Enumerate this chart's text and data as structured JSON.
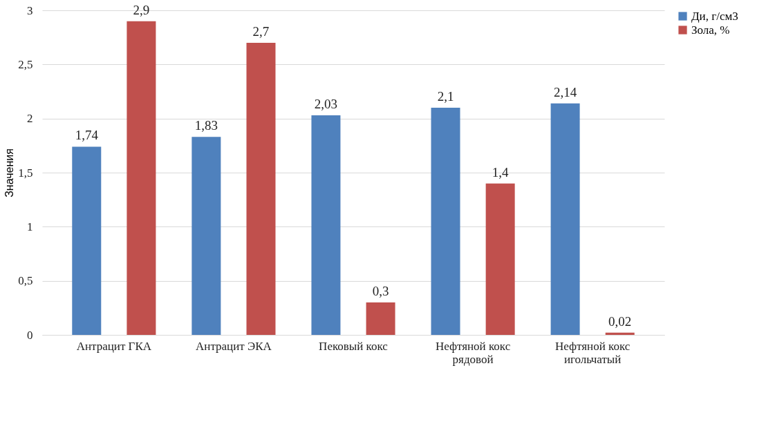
{
  "chart_data": {
    "type": "bar",
    "ylabel": "Значения",
    "categories": [
      "Антрацит ГКА",
      "Антрацит ЭКА",
      "Пековый кокс",
      "Нефтяной кокс рядовой",
      "Нефтяной кокс игольчатый"
    ],
    "series": [
      {
        "name": "Ди, г/см3",
        "color": "#4f81bd",
        "values": [
          1.74,
          1.83,
          2.03,
          2.1,
          2.14
        ],
        "value_labels": [
          "1,74",
          "1,83",
          "2,03",
          "2,1",
          "2,14"
        ]
      },
      {
        "name": "Зола, %",
        "color": "#c0504d",
        "values": [
          2.9,
          2.7,
          0.3,
          1.4,
          0.02
        ],
        "value_labels": [
          "2,9",
          "2,7",
          "0,3",
          "1,4",
          "0,02"
        ]
      }
    ],
    "ylim": [
      0,
      3
    ],
    "yticks": [
      0,
      {
        "value": 0.5,
        "label": "0,5"
      },
      1,
      {
        "value": 1.5,
        "label": "1,5"
      },
      2,
      {
        "value": 2.5,
        "label": "2,5"
      },
      3
    ],
    "grid": "y",
    "legend": "right"
  }
}
